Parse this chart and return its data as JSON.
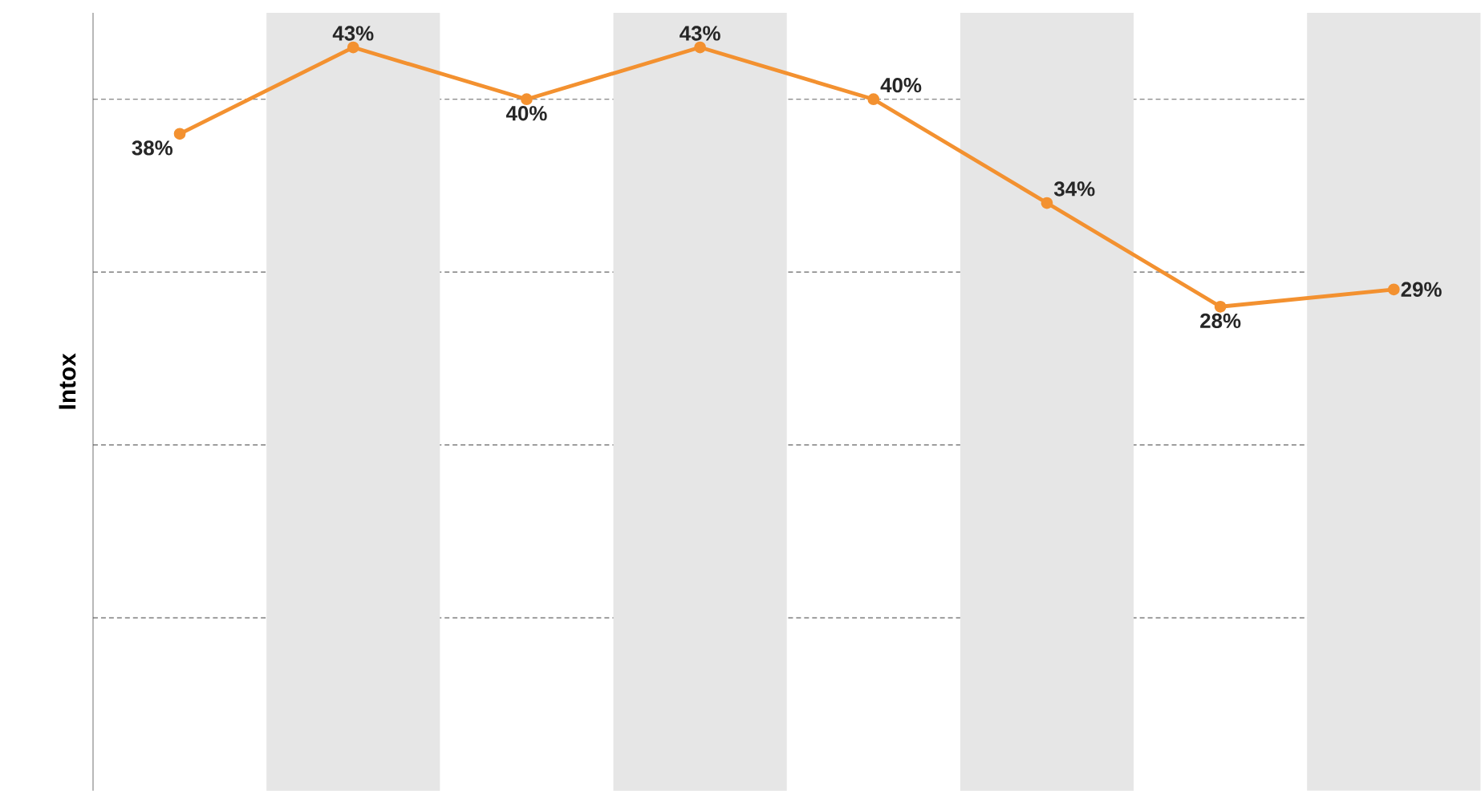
{
  "chart_data": {
    "type": "line",
    "ylabel": "Intox",
    "categories": [
      null,
      null,
      null,
      null,
      null,
      null,
      null,
      null
    ],
    "series": [
      {
        "color": "#f39130",
        "values": [
          38,
          43,
          40,
          43,
          40,
          34,
          28,
          29
        ],
        "value_labels": [
          "38%",
          "43%",
          "40%",
          "43%",
          "40%",
          "34%",
          "28%",
          "29%"
        ]
      }
    ],
    "ylim": [
      0,
      45
    ],
    "yticks": [
      {
        "value": 10,
        "label": null
      },
      {
        "value": 20,
        "label": null
      },
      {
        "value": 30,
        "label": null
      },
      {
        "value": 40,
        "label": null
      }
    ],
    "grid": "y",
    "marker": "circle",
    "line_style": "solid"
  }
}
